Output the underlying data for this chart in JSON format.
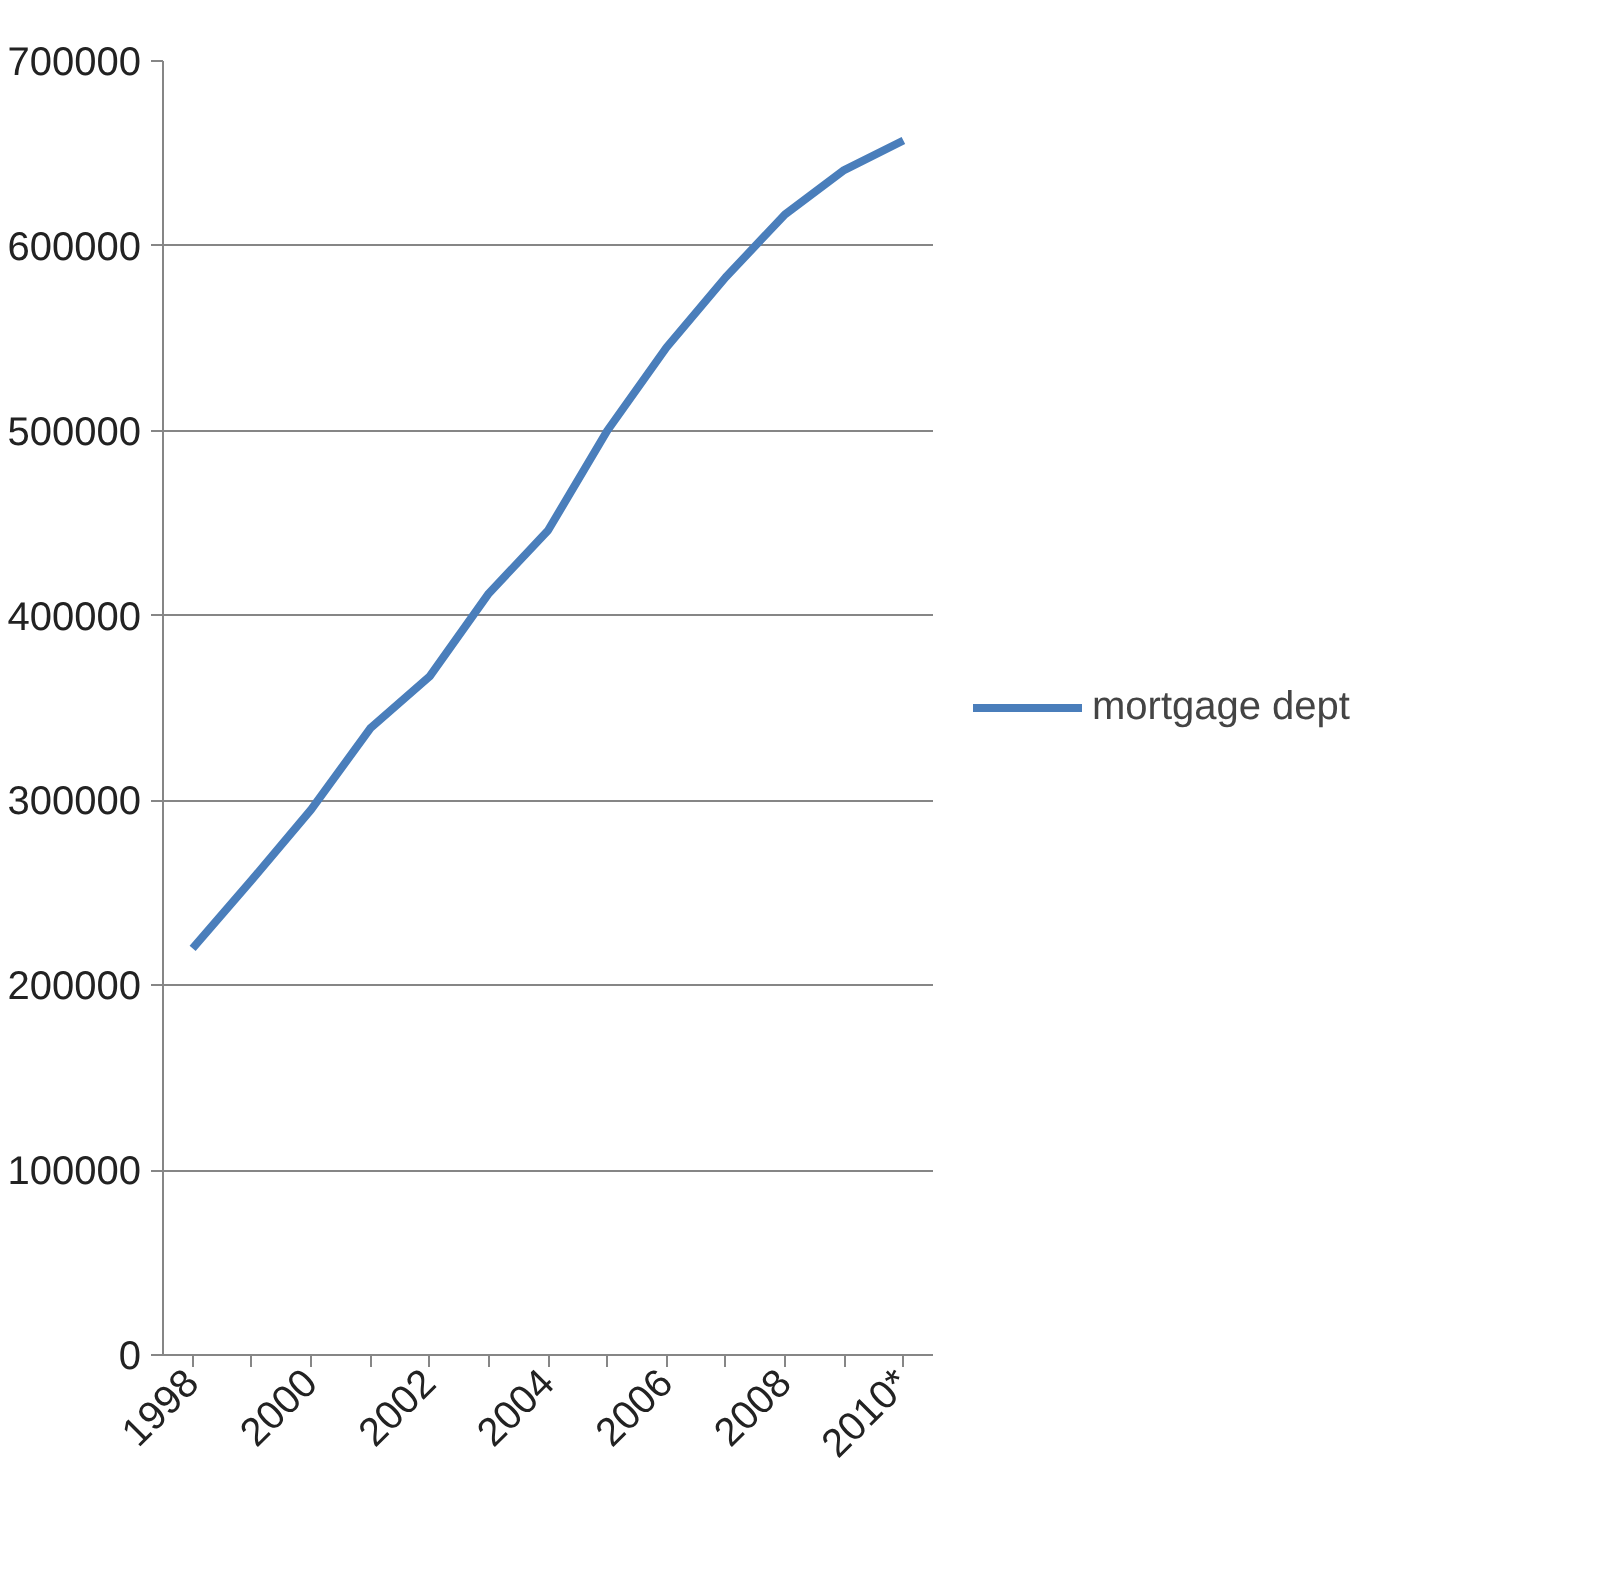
{
  "chart_data": {
    "type": "line",
    "categories": [
      "1998",
      null,
      "2000",
      null,
      "2002",
      null,
      "2004",
      null,
      "2006",
      null,
      "2008",
      null,
      "2010*"
    ],
    "series": [
      {
        "name": "mortgage dept",
        "color": "#4a7ebb",
        "values": [
          220000,
          257000,
          295000,
          339000,
          367000,
          412000,
          446000,
          500000,
          545000,
          583000,
          617000,
          641000,
          657000
        ]
      }
    ],
    "ylim": [
      0,
      700000
    ],
    "yticks": [
      0,
      100000,
      200000,
      300000,
      400000,
      500000,
      600000,
      700000
    ],
    "grid": "y",
    "legend": "right",
    "marker": "none",
    "line_style": "solid"
  }
}
